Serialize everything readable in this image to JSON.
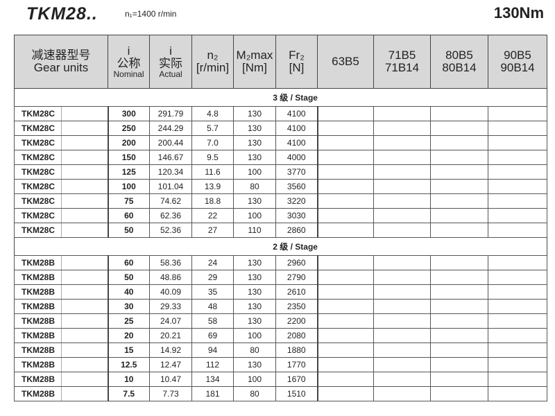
{
  "header": {
    "title": "TKM28..",
    "input_speed": "n₁=1400 r/min",
    "torque": "130Nm"
  },
  "columns": {
    "gear_units_cn": "减速器型号",
    "gear_units_en": "Gear units",
    "i_nominal_sym": "i",
    "i_nominal_cn": "公称",
    "i_nominal_en": "Nominal",
    "i_actual_sym": "i",
    "i_actual_cn": "实际",
    "i_actual_en": "Actual",
    "n2": "n₂",
    "n2_unit": "[r/min]",
    "m2max": "M₂max",
    "m2max_unit": "[Nm]",
    "fr2": "Fr₂",
    "fr2_unit": "[N]",
    "motor1": "63B5",
    "motor2a": "71B5",
    "motor2b": "71B14",
    "motor3a": "80B5",
    "motor3b": "80B14",
    "motor4a": "90B5",
    "motor4b": "90B14"
  },
  "sections": [
    {
      "label": "3 级 / Stage",
      "rows": [
        [
          "TKM28C",
          "300",
          "291.79",
          "4.8",
          "130",
          "4100"
        ],
        [
          "TKM28C",
          "250",
          "244.29",
          "5.7",
          "130",
          "4100"
        ],
        [
          "TKM28C",
          "200",
          "200.44",
          "7.0",
          "130",
          "4100"
        ],
        [
          "TKM28C",
          "150",
          "146.67",
          "9.5",
          "130",
          "4000"
        ],
        [
          "TKM28C",
          "125",
          "120.34",
          "11.6",
          "100",
          "3770"
        ],
        [
          "TKM28C",
          "100",
          "101.04",
          "13.9",
          "80",
          "3560"
        ],
        [
          "TKM28C",
          "75",
          "74.62",
          "18.8",
          "130",
          "3220"
        ],
        [
          "TKM28C",
          "60",
          "62.36",
          "22",
          "100",
          "3030"
        ],
        [
          "TKM28C",
          "50",
          "52.36",
          "27",
          "110",
          "2860"
        ]
      ]
    },
    {
      "label": "2 级 / Stage",
      "rows": [
        [
          "TKM28B",
          "60",
          "58.36",
          "24",
          "130",
          "2960"
        ],
        [
          "TKM28B",
          "50",
          "48.86",
          "29",
          "130",
          "2790"
        ],
        [
          "TKM28B",
          "40",
          "40.09",
          "35",
          "130",
          "2610"
        ],
        [
          "TKM28B",
          "30",
          "29.33",
          "48",
          "130",
          "2350"
        ],
        [
          "TKM28B",
          "25",
          "24.07",
          "58",
          "130",
          "2200"
        ],
        [
          "TKM28B",
          "20",
          "20.21",
          "69",
          "100",
          "2080"
        ],
        [
          "TKM28B",
          "15",
          "14.92",
          "94",
          "80",
          "1880"
        ],
        [
          "TKM28B",
          "12.5",
          "12.47",
          "112",
          "130",
          "1770"
        ],
        [
          "TKM28B",
          "10",
          "10.47",
          "134",
          "100",
          "1670"
        ],
        [
          "TKM28B",
          "7.5",
          "7.73",
          "181",
          "80",
          "1510"
        ]
      ]
    }
  ]
}
